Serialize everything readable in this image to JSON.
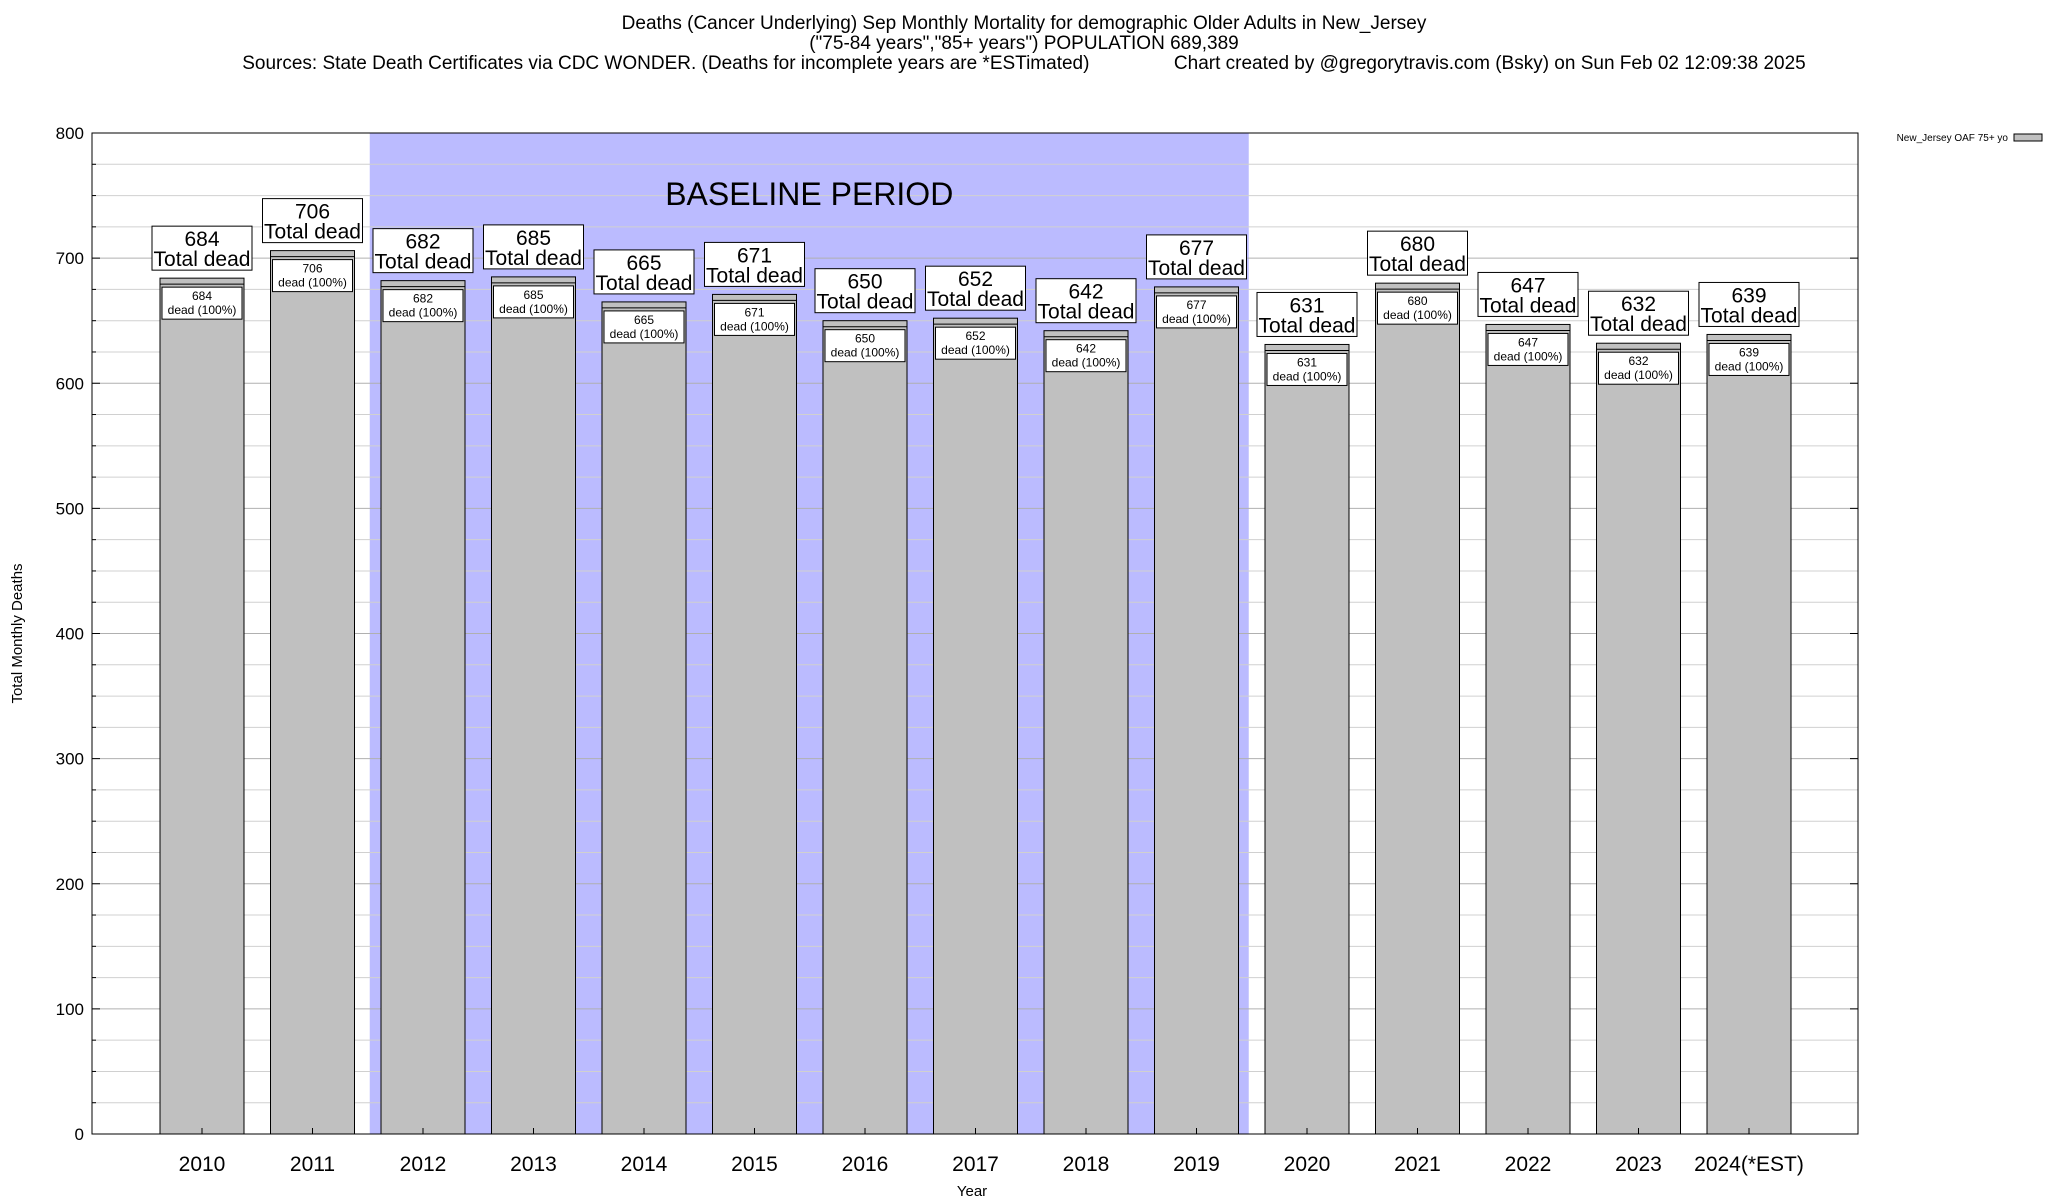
{
  "header": {
    "title": "Deaths (Cancer Underlying) Sep Monthly Mortality for demographic Older Adults in New_Jersey",
    "subtitle": "(\"75-84 years\",\"85+ years\") POPULATION 689,389",
    "sources": "Sources: State Death Certificates via CDC WONDER. (Deaths for incomplete years are *ESTimated)",
    "credit": "Chart created by @gregorytravis.com (Bsky) on Sun Feb 02 12:09:38 2025"
  },
  "chart_data": {
    "type": "bar",
    "xlabel": "Year",
    "ylabel": "Total Monthly Deaths",
    "ylim": [
      0,
      800
    ],
    "yticks": [
      0,
      100,
      200,
      300,
      400,
      500,
      600,
      700,
      800
    ],
    "grid": true,
    "categories": [
      "2010",
      "2011",
      "2012",
      "2013",
      "2014",
      "2015",
      "2016",
      "2017",
      "2018",
      "2019",
      "2020",
      "2021",
      "2022",
      "2023",
      "2024(*EST)"
    ],
    "series": [
      {
        "name": "New_Jersey OAF 75+ yo",
        "color": "#c0c0c0",
        "values": [
          684,
          706,
          682,
          685,
          665,
          671,
          650,
          652,
          642,
          677,
          631,
          680,
          647,
          632,
          639
        ]
      }
    ],
    "total_label_suffix": "Total dead",
    "inner_label_suffix": "dead (100%)",
    "baseline": {
      "label": "BASELINE PERIOD",
      "start": "2012",
      "end": "2019",
      "color": "#bbbbff"
    },
    "legend": {
      "position": "top-right"
    }
  }
}
